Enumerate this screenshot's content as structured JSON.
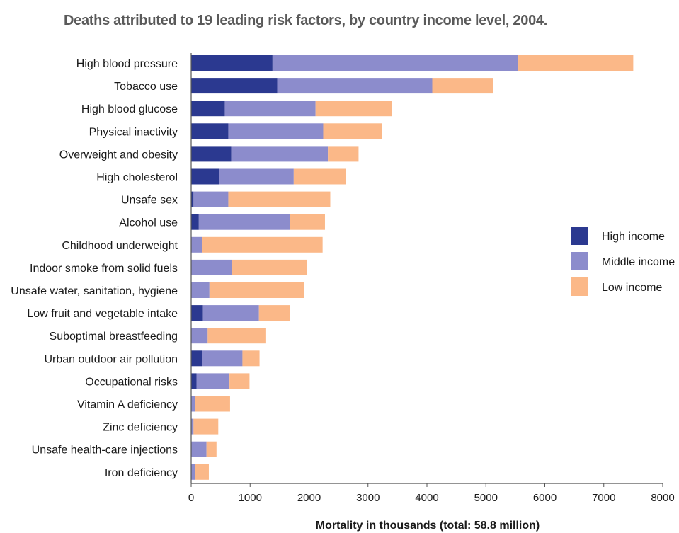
{
  "colors": {
    "high_income": "#2b3990",
    "middle_income": "#8c8ccc",
    "low_income": "#fbb888",
    "axis": "#555555"
  },
  "chart_data": {
    "type": "bar",
    "orientation": "horizontal",
    "stacked": true,
    "title": "Deaths attributed to 19 leading risk factors, by country income level, 2004.",
    "xlabel": "Mortality in thousands (total: 58.8 million)",
    "ylabel": "",
    "xlim": [
      0,
      8000
    ],
    "xticks": [
      0,
      1000,
      2000,
      3000,
      4000,
      5000,
      6000,
      7000,
      8000
    ],
    "grid": false,
    "legend_position": "right",
    "categories": [
      "High blood pressure",
      "Tobacco use",
      "High blood glucose",
      "Physical inactivity",
      "Overweight and obesity",
      "High cholesterol",
      "Unsafe sex",
      "Alcohol use",
      "Childhood underweight",
      "Indoor smoke from solid fuels",
      "Unsafe water, sanitation, hygiene",
      "Low fruit and vegetable intake",
      "Suboptimal breastfeeding",
      "Urban outdoor air pollution",
      "Occupational risks",
      "Vitamin A deficiency",
      "Zinc deficiency",
      "Unsafe health-care injections",
      "Iron deficiency"
    ],
    "series": [
      {
        "name": "High income",
        "values": [
          1380,
          1460,
          570,
          630,
          680,
          470,
          40,
          130,
          0,
          0,
          0,
          200,
          0,
          190,
          90,
          0,
          0,
          0,
          0
        ]
      },
      {
        "name": "Middle income",
        "values": [
          4170,
          2630,
          1540,
          1610,
          1640,
          1270,
          590,
          1550,
          190,
          690,
          310,
          950,
          280,
          680,
          560,
          70,
          40,
          260,
          70
        ]
      },
      {
        "name": "Low income",
        "values": [
          1950,
          1030,
          1300,
          1000,
          520,
          890,
          1730,
          590,
          2040,
          1280,
          1610,
          530,
          980,
          290,
          340,
          590,
          420,
          170,
          230
        ]
      }
    ]
  }
}
